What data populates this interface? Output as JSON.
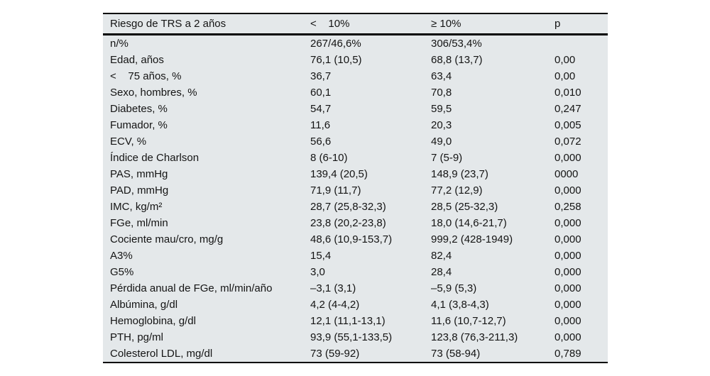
{
  "page": {
    "background": "#ffffff"
  },
  "table": {
    "background": "#e4e8ea",
    "rule_color": "#000000",
    "text_color": "#141414",
    "header": [
      "Riesgo de TRS a 2 años",
      "<    10%",
      "≥ 10%",
      "p"
    ],
    "row_keys": [
      "label",
      "lt10",
      "gte10",
      "p"
    ],
    "rows": [
      {
        "label": "n/%",
        "lt10": "267/46,6%",
        "gte10": "306/53,4%",
        "p": ""
      },
      {
        "label": "Edad, años",
        "lt10": "76,1 (10,5)",
        "gte10": "68,8 (13,7)",
        "p": "0,00"
      },
      {
        "label": "<    75 años, %",
        "lt10": "36,7",
        "gte10": "63,4",
        "p": "0,00"
      },
      {
        "label": "Sexo, hombres, %",
        "lt10": "60,1",
        "gte10": "70,8",
        "p": "0,010"
      },
      {
        "label": "Diabetes, %",
        "lt10": "54,7",
        "gte10": "59,5",
        "p": "0,247"
      },
      {
        "label": "Fumador, %",
        "lt10": "11,6",
        "gte10": "20,3",
        "p": "0,005"
      },
      {
        "label": "ECV, %",
        "lt10": "56,6",
        "gte10": "49,0",
        "p": "0,072"
      },
      {
        "label": "Índice de Charlson",
        "lt10": "8 (6-10)",
        "gte10": "7 (5-9)",
        "p": "0,000"
      },
      {
        "label": "PAS, mmHg",
        "lt10": "139,4 (20,5)",
        "gte10": "148,9 (23,7)",
        "p": "0000"
      },
      {
        "label": "PAD, mmHg",
        "lt10": "71,9 (11,7)",
        "gte10": "77,2 (12,9)",
        "p": "0,000"
      },
      {
        "label": "IMC, kg/m²",
        "lt10": "28,7 (25,8-32,3)",
        "gte10": "28,5 (25-32,3)",
        "p": "0,258"
      },
      {
        "label": "FGe, ml/min",
        "lt10": "23,8 (20,2-23,8)",
        "gte10": "18,0 (14,6-21,7)",
        "p": "0,000"
      },
      {
        "label": "Cociente mau/cro, mg/g",
        "lt10": "48,6 (10,9-153,7)",
        "gte10": "999,2 (428-1949)",
        "p": "0,000"
      },
      {
        "label": "A3%",
        "lt10": "15,4",
        "gte10": "82,4",
        "p": "0,000"
      },
      {
        "label": "G5%",
        "lt10": "3,0",
        "gte10": "28,4",
        "p": "0,000"
      },
      {
        "label": "Pérdida anual de FGe, ml/min/año",
        "lt10": "–3,1 (3,1)",
        "gte10": "–5,9 (5,3)",
        "p": "0,000"
      },
      {
        "label": "Albúmina, g/dl",
        "lt10": "4,2 (4-4,2)",
        "gte10": "4,1 (3,8-4,3)",
        "p": "0,000"
      },
      {
        "label": "Hemoglobina, g/dl",
        "lt10": "12,1 (11,1-13,1)",
        "gte10": "11,6 (10,7-12,7)",
        "p": "0,000"
      },
      {
        "label": "PTH, pg/ml",
        "lt10": "93,9 (55,1-133,5)",
        "gte10": "123,8 (76,3-211,3)",
        "p": "0,000"
      },
      {
        "label": "Colesterol LDL, mg/dl",
        "lt10": "73 (59-92)",
        "gte10": "73 (58-94)",
        "p": "0,789"
      }
    ]
  }
}
